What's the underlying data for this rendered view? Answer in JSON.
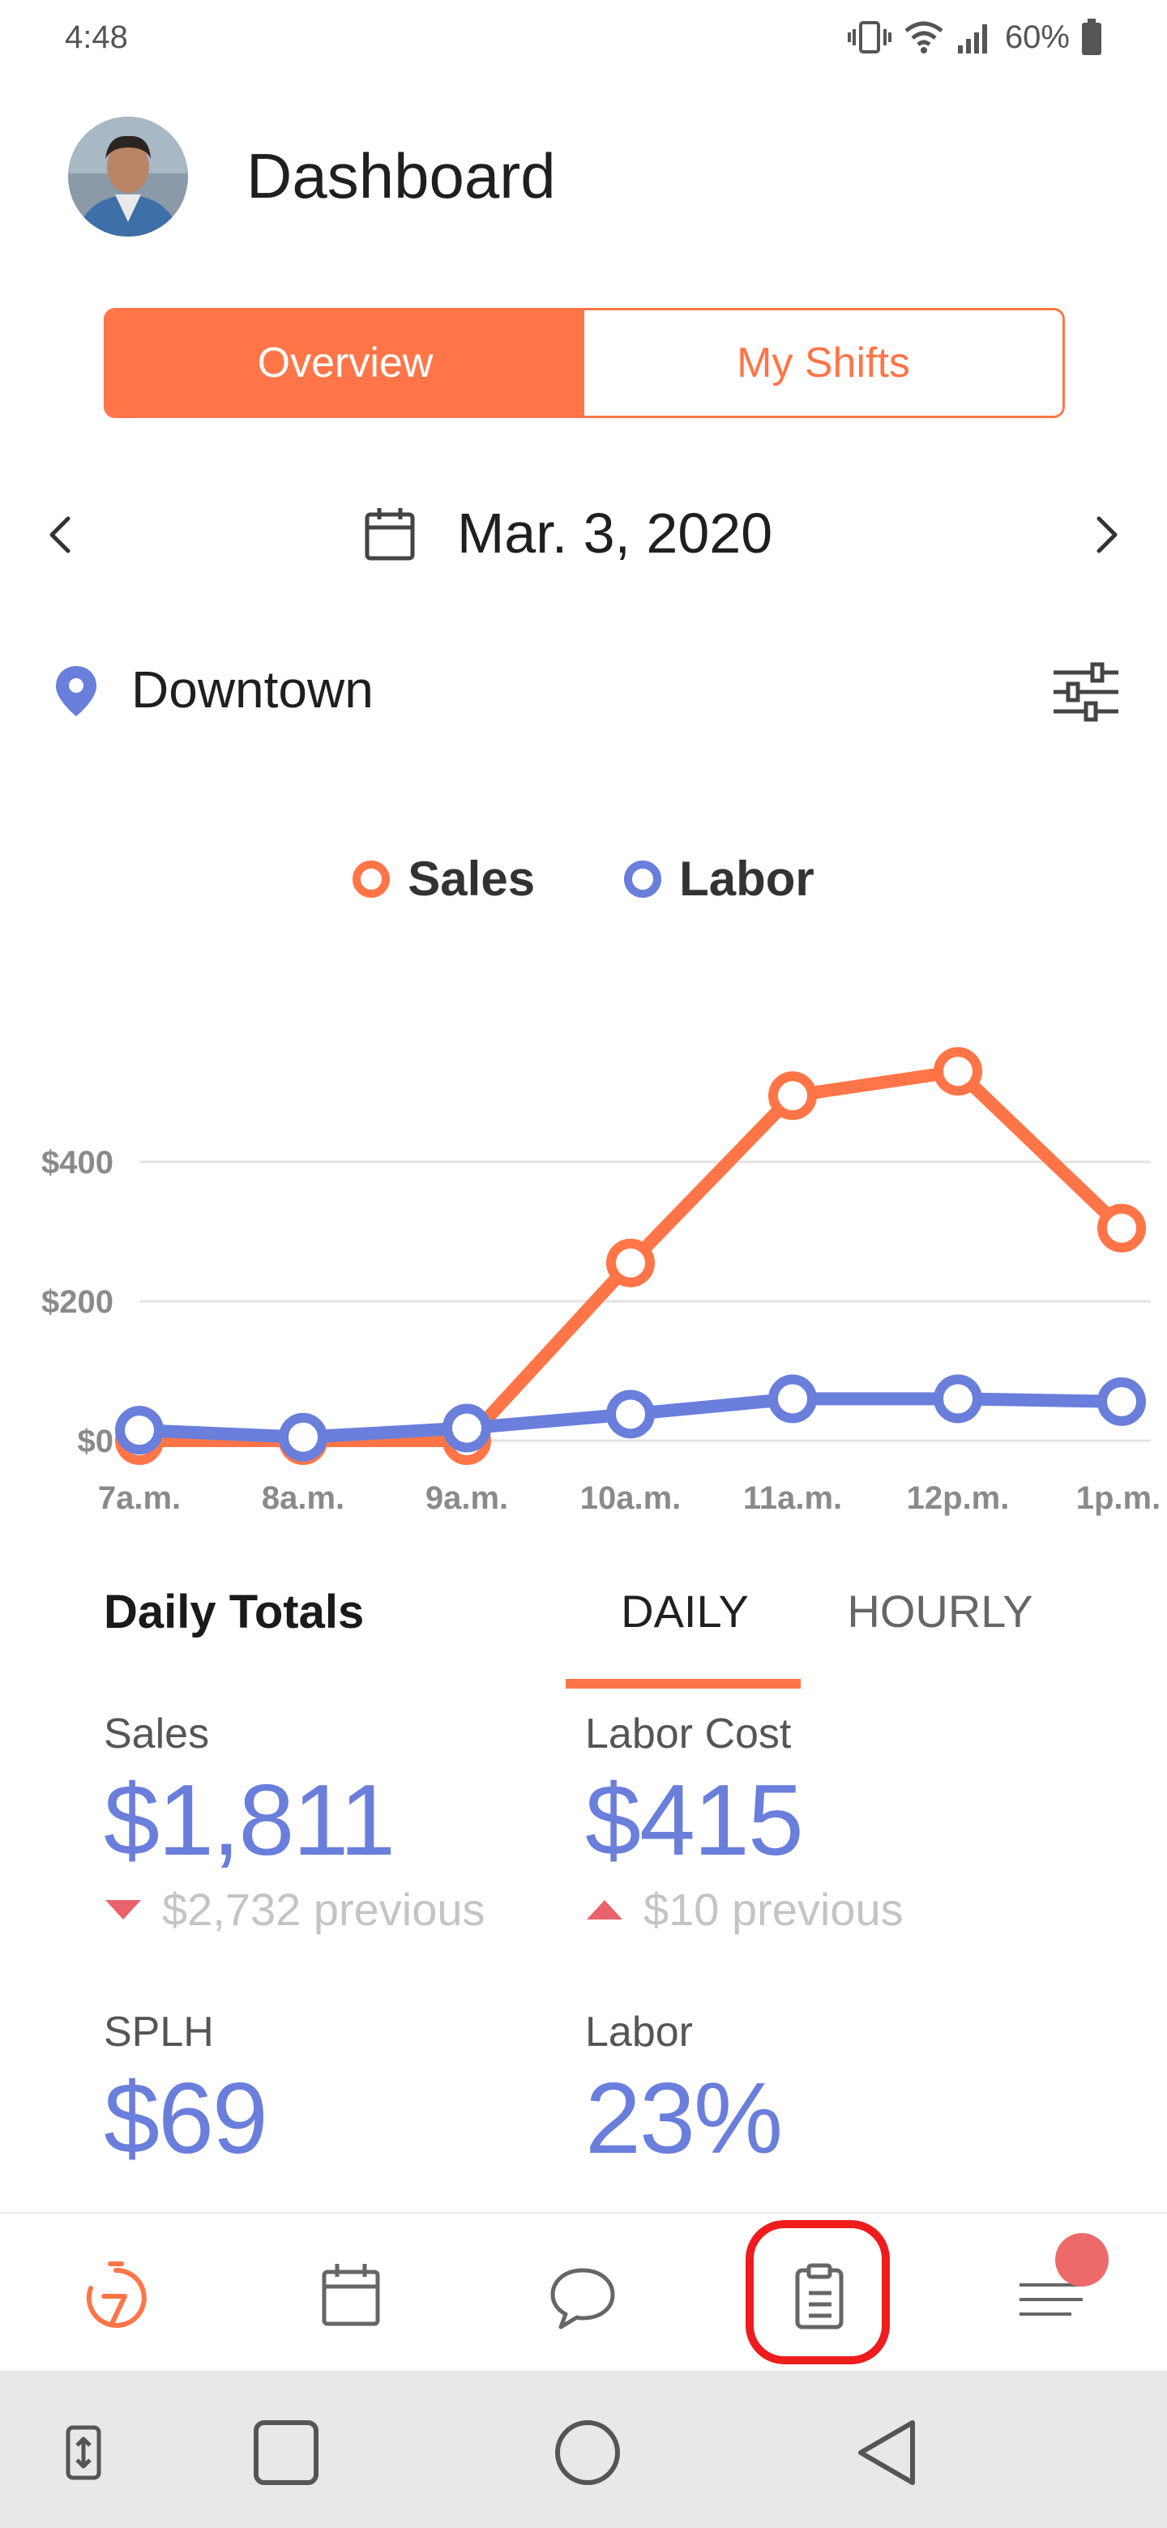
{
  "status_bar": {
    "time": "4:48",
    "battery": "60%"
  },
  "header": {
    "title": "Dashboard"
  },
  "segmented": {
    "overview": "Overview",
    "my_shifts": "My Shifts"
  },
  "date_nav": {
    "date": "Mar. 3, 2020"
  },
  "location": {
    "name": "Downtown"
  },
  "icons": {
    "prev": "chevron-left-icon",
    "next": "chevron-right-icon",
    "calendar": "calendar-icon",
    "pin": "location-pin-icon",
    "filter": "sliders-icon"
  },
  "colors": {
    "accent": "#ff7547",
    "labor": "#6a7edb",
    "down": "#e8636b",
    "highlight": "#ee1c1c"
  },
  "chart_data": {
    "type": "line",
    "categories": [
      "7a.m.",
      "8a.m.",
      "9a.m.",
      "10a.m.",
      "11a.m.",
      "12p.m.",
      "1p.m."
    ],
    "series": [
      {
        "name": "Sales",
        "color": "#ff7547",
        "values": [
          0,
          0,
          0,
          255,
          495,
          530,
          305
        ]
      },
      {
        "name": "Labor",
        "color": "#6a7edb",
        "values": [
          15,
          5,
          18,
          38,
          60,
          60,
          56
        ]
      }
    ],
    "y_ticks": [
      "$0",
      "$200",
      "$400"
    ],
    "y_tick_values": [
      0,
      200,
      400
    ],
    "ylim": [
      0,
      600
    ],
    "legend": "top-center",
    "grid": true
  },
  "totals": {
    "title": "Daily Totals",
    "tab_daily": "DAILY",
    "tab_hourly": "HOURLY",
    "sales": {
      "label": "Sales",
      "value": "$1,811",
      "previous": "$2,732 previous",
      "trend": "down"
    },
    "labor_cost": {
      "label": "Labor Cost",
      "value": "$415",
      "previous": "$10 previous",
      "trend": "up"
    },
    "splh": {
      "label": "SPLH",
      "value": "$69"
    },
    "labor": {
      "label": "Labor",
      "value": "23%"
    }
  },
  "bottom_nav": [
    "timer-icon",
    "calendar-icon",
    "chat-icon",
    "clipboard-icon",
    "menu-icon"
  ],
  "system_nav": [
    "switch-app-icon",
    "recents-icon",
    "home-icon",
    "back-icon"
  ]
}
